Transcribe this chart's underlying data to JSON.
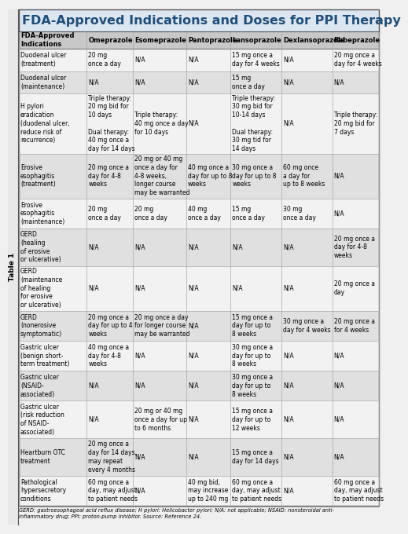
{
  "title": "FDA-Approved Indications and Doses for PPI Therapy",
  "table_label": "Table 1",
  "title_bg": "#dce6f0",
  "header_bg": "#c8c8c8",
  "row_bg_light": "#f2f2f2",
  "row_bg_dark": "#e0e0e0",
  "title_color": "#1f4e79",
  "text_color": "#000000",
  "line_color": "#999999",
  "outer_line_color": "#555555",
  "columns": [
    "FDA-Approved\nIndications",
    "Omeprazole",
    "Esomeprazole",
    "Pantoprazole",
    "Lansoprazole",
    "Dexlansoprazole",
    "Rabeprazole"
  ],
  "col_widths_rel": [
    1.6,
    1.1,
    1.25,
    1.05,
    1.2,
    1.2,
    1.1
  ],
  "rows": [
    [
      "Duodenal ulcer\n(treatment)",
      "20 mg\nonce a day",
      "N/A",
      "N/A",
      "15 mg once a\nday for 4 weeks",
      "N/A",
      "20 mg once a\nday for 4 weeks"
    ],
    [
      "Duodenal ulcer\n(maintenance)",
      "N/A",
      "N/A",
      "N/A",
      "15 mg\nonce a day",
      "N/A",
      "N/A"
    ],
    [
      "H pylori\neradication\n(duodenal ulcer,\nreduce risk of\nrecurrence)",
      "Triple therapy:\n20 mg bid for\n10 days\n\nDual therapy:\n40 mg once a\nday for 14 days",
      "Triple therapy:\n40 mg once a day\nfor 10 days",
      "N/A",
      "Triple therapy:\n30 mg bid for\n10-14 days\n\nDual therapy:\n30 mg tid for\n14 days",
      "N/A",
      "Triple therapy:\n20 mg bid for\n7 days"
    ],
    [
      "Erosive\nesophagitis\n(treatment)",
      "20 mg once a\nday for 4-8\nweeks",
      "20 mg or 40 mg\nonce a day for\n4-8 weeks,\nlonger course\nmay be warranted",
      "40 mg once a\nday for up to 8\nweeks",
      "30 mg once a\nday for up to 8\nweeks",
      "60 mg once\na day for\nup to 8 weeks",
      "N/A"
    ],
    [
      "Erosive\nesophagitis\n(maintenance)",
      "20 mg\nonce a day",
      "20 mg\nonce a day",
      "40 mg\nonce a day",
      "15 mg\nonce a day",
      "30 mg\nonce a day",
      "N/A"
    ],
    [
      "GERD\n(healing\nof erosive\nor ulcerative)",
      "N/A",
      "N/A",
      "N/A",
      "N/A",
      "N/A",
      "20 mg once a\nday for 4-8\nweeks"
    ],
    [
      "GERD\n(maintenance\nof healing\nfor erosive\nor ulcerative)",
      "N/A",
      "N/A",
      "N/A",
      "N/A",
      "N/A",
      "20 mg once a\nday"
    ],
    [
      "GERD\n(nonerosive\nsymptomatic)",
      "20 mg once a\nday for up to 4\nweeks",
      "20 mg once a day\nfor longer course\nmay be warranted",
      "N/A",
      "15 mg once a\nday for up to\n8 weeks",
      "30 mg once a\nday for 4 weeks",
      "20 mg once a\nfor 4 weeks"
    ],
    [
      "Gastric ulcer\n(benign short-\nterm treatment)",
      "40 mg once a\nday for 4-8\nweeks",
      "N/A",
      "N/A",
      "30 mg once a\nday for up to\n8 weeks",
      "N/A",
      "N/A"
    ],
    [
      "Gastric ulcer\n(NSAID-\nassociated)",
      "N/A",
      "N/A",
      "N/A",
      "30 mg once a\nday for up to\n8 weeks",
      "N/A",
      "N/A"
    ],
    [
      "Gastric ulcer\n(risk reduction\nof NSAID-\nassociated)",
      "N/A",
      "20 mg or 40 mg\nonce a day for up\nto 6 months",
      "N/A",
      "15 mg once a\nday for up to\n12 weeks",
      "N/A",
      "N/A"
    ],
    [
      "Heartburn OTC\ntreatment",
      "20 mg once a\nday for 14 days,\nmay repeat\nevery 4 months",
      "N/A",
      "N/A",
      "15 mg once a\nday for 14 days",
      "N/A",
      "N/A"
    ],
    [
      "Pathological\nhypersecretory\nconditions",
      "60 mg once a\nday, may adjust\nto patient needs",
      "N/A",
      "40 mg bid,\nmay increase\nup to 240 mg",
      "60 mg once a\nday, may adjust\nto patient needs",
      "N/A",
      "60 mg once a\nday, may adjust\nto patient needs"
    ]
  ],
  "footnote": "GERD: gastroesophageal acid reflux disease; H pylori: Helicobacter pylori; N/A: not applicable; NSAID: nonsteroidal anti-\ninflammatory drug; PPI: proton-pump inhibitor. Source: Reference 24.",
  "font_size": 5.5,
  "header_font_size": 6.0,
  "title_font_size": 11.5
}
